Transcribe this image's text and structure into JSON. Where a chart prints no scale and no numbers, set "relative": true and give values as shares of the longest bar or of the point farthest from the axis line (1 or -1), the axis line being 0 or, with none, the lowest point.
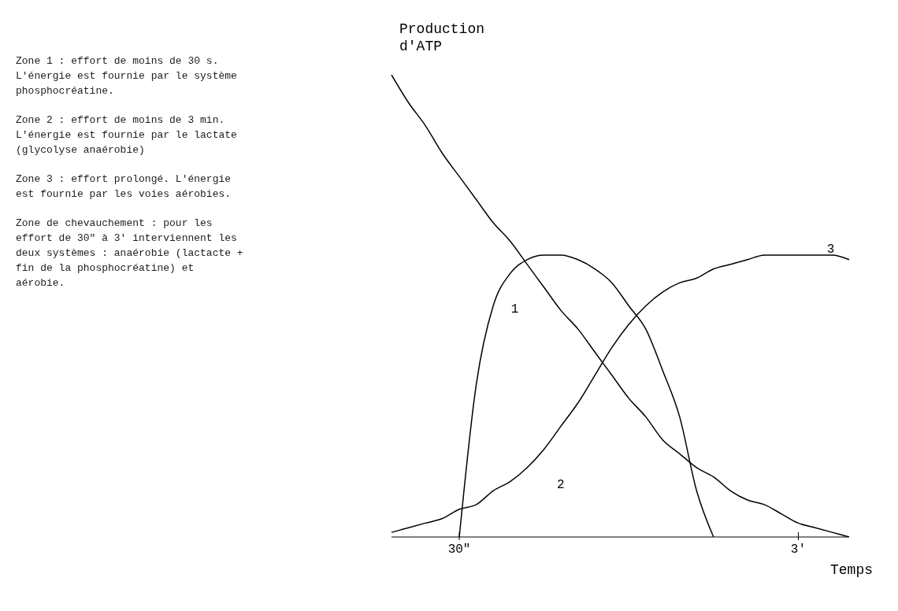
{
  "chart_data": {
    "type": "line",
    "relative": true,
    "ylabel": "Production d'ATP",
    "xlabel": "Temps",
    "categories": [
      null,
      null,
      null,
      null,
      "30\"",
      null,
      null,
      null,
      null,
      null,
      null,
      null,
      null,
      null,
      null,
      null,
      null,
      null,
      null,
      null,
      null,
      null,
      null,
      null,
      "3′",
      null,
      null,
      null
    ],
    "grid": false,
    "marker": "none",
    "line_style": "solid",
    "annotations": [
      "Zone 1 : effort de moins de 30 s. L'énergie est fournie par le système phosphocréatine.",
      "Zone 2 : effort de moins de 3 min. L'énergie est fournie par le lactate (glycolyse anaérobie)",
      "Zone 3 : effort prolongé. L'énergie est fournie par les voies aérobies.",
      "Zone de chevauchement : pour les effort de 30\" à 3′ interviennent les deux systèmes : anaérobie (lactacte + fin de la phosphocréatine) et aérobie.",
      "1",
      "2",
      "3"
    ],
    "series": [
      {
        "color": "#000000",
        "values": [
          1,
          0.94,
          0.89,
          0.83,
          0.78,
          0.73,
          0.68,
          0.64,
          0.59,
          0.54,
          0.49,
          0.45,
          0.4,
          0.35,
          0.3,
          0.26,
          0.21,
          0.18,
          0.15,
          0.13,
          0.1,
          0.08,
          0.07,
          0.05,
          0.03,
          0.02,
          0.01,
          0
        ]
      },
      {
        "color": "#000000",
        "values": [
          null,
          null,
          null,
          null,
          0,
          0.33,
          0.5,
          0.57,
          0.6,
          0.61,
          0.61,
          0.6,
          0.58,
          0.55,
          0.5,
          0.45,
          0.36,
          0.26,
          0.1,
          0,
          null,
          null,
          null,
          null,
          null,
          null,
          null,
          null
        ]
      },
      {
        "color": "#000000",
        "values": [
          0.01,
          0.02,
          0.03,
          0.04,
          0.06,
          0.07,
          0.1,
          0.12,
          0.15,
          0.19,
          0.24,
          0.29,
          0.35,
          0.41,
          0.46,
          0.5,
          0.53,
          0.55,
          0.56,
          0.58,
          0.59,
          0.6,
          0.61,
          0.61,
          0.61,
          0.61,
          0.61,
          0.6
        ]
      }
    ]
  }
}
